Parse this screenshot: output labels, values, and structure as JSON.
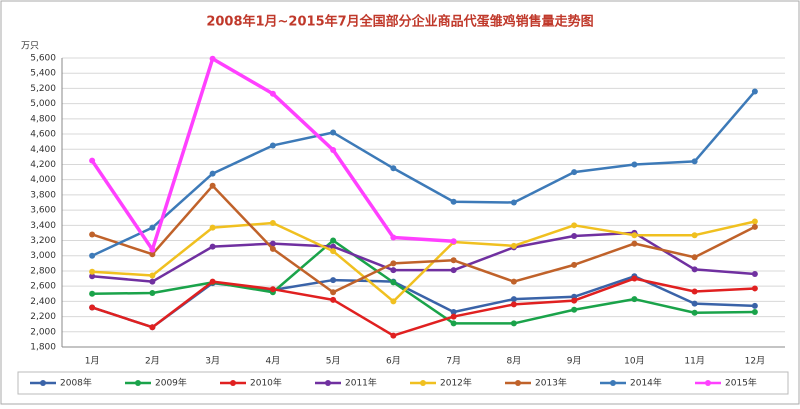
{
  "chart_data": {
    "type": "line",
    "title": "2008年1月~2015年7月全国部分企业商品代蛋雏鸡销售量走势图",
    "y_unit": "万只",
    "categories": [
      "1月",
      "2月",
      "3月",
      "4月",
      "5月",
      "6月",
      "7月",
      "8月",
      "9月",
      "10月",
      "11月",
      "12月"
    ],
    "ylim": [
      1800,
      5600
    ],
    "yticks": [
      {
        "value": 1800,
        "label": "1,800"
      },
      {
        "value": 2000,
        "label": "2,000"
      },
      {
        "value": 2200,
        "label": "2,200"
      },
      {
        "value": 2400,
        "label": "2,400"
      },
      {
        "value": 2600,
        "label": "2,600"
      },
      {
        "value": 2800,
        "label": "2,800"
      },
      {
        "value": 3000,
        "label": "3,000"
      },
      {
        "value": 3200,
        "label": "3,200"
      },
      {
        "value": 3400,
        "label": "3,400"
      },
      {
        "value": 3600,
        "label": "3,600"
      },
      {
        "value": 3800,
        "label": "3,800"
      },
      {
        "value": 4000,
        "label": "4,000"
      },
      {
        "value": 4200,
        "label": "4,200"
      },
      {
        "value": 4400,
        "label": "4,400"
      },
      {
        "value": 4600,
        "label": "4,600"
      },
      {
        "value": 4800,
        "label": "4,800"
      },
      {
        "value": 5000,
        "label": "5,000"
      },
      {
        "value": 5200,
        "label": "5,200"
      },
      {
        "value": 5400,
        "label": "5,400"
      },
      {
        "value": 5600,
        "label": "5,600"
      }
    ],
    "grid": true,
    "series": [
      {
        "name": "2008年",
        "color": "#3a63a8",
        "values": [
          2320,
          2060,
          2640,
          2550,
          2680,
          2660,
          2260,
          2430,
          2460,
          2730,
          2370,
          2340
        ]
      },
      {
        "name": "2009年",
        "color": "#1aa34a",
        "values": [
          2500,
          2510,
          2650,
          2520,
          3200,
          2650,
          2110,
          2110,
          2290,
          2430,
          2250,
          2260
        ]
      },
      {
        "name": "2010年",
        "color": "#e02020",
        "values": [
          2320,
          2060,
          2660,
          2560,
          2420,
          1950,
          2200,
          2360,
          2410,
          2700,
          2530,
          2570
        ]
      },
      {
        "name": "2011年",
        "color": "#7030a0",
        "values": [
          2730,
          2660,
          3120,
          3160,
          3120,
          2810,
          2810,
          3110,
          3260,
          3300,
          2820,
          2760
        ]
      },
      {
        "name": "2012年",
        "color": "#f0c020",
        "values": [
          2790,
          2740,
          3370,
          3430,
          3060,
          2400,
          3180,
          3130,
          3400,
          3270,
          3270,
          3450
        ]
      },
      {
        "name": "2013年",
        "color": "#c0622a",
        "values": [
          3280,
          3020,
          3920,
          3090,
          2520,
          2900,
          2940,
          2660,
          2880,
          3160,
          2980,
          3380
        ]
      },
      {
        "name": "2014年",
        "color": "#3d7ab8",
        "values": [
          3000,
          3370,
          4080,
          4450,
          4620,
          4150,
          3710,
          3700,
          4100,
          4200,
          4240,
          5160
        ]
      },
      {
        "name": "2015年",
        "color": "#ff40ff",
        "values": [
          4250,
          3080,
          5590,
          5130,
          4390,
          3240,
          3190,
          null,
          null,
          null,
          null,
          null
        ]
      }
    ]
  }
}
